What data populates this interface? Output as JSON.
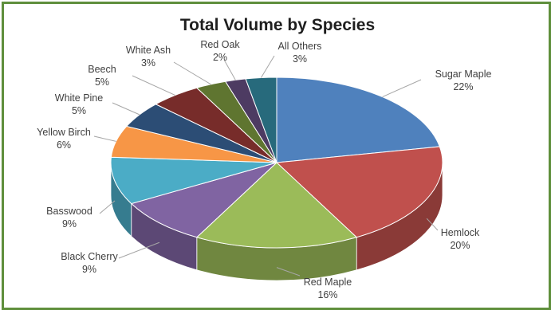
{
  "chart_data": {
    "type": "pie",
    "title": "Total Volume by Species",
    "three_d": true,
    "legend": "none",
    "categories": [
      "Sugar Maple",
      "Hemlock",
      "Red Maple",
      "Black Cherry",
      "Basswood",
      "Yellow Birch",
      "White Pine",
      "Beech",
      "White Ash",
      "Red Oak",
      "All Others"
    ],
    "values": [
      22,
      20,
      16,
      9,
      9,
      6,
      5,
      5,
      3,
      2,
      3
    ],
    "value_labels": [
      "22%",
      "20%",
      "16%",
      "9%",
      "9%",
      "6%",
      "5%",
      "5%",
      "3%",
      "2%",
      "3%"
    ],
    "colors": [
      "#4f81bd",
      "#c0504d",
      "#9bbb59",
      "#8064a2",
      "#4bacc6",
      "#f79646",
      "#2c4d75",
      "#772c2a",
      "#5f7530",
      "#4d3b62",
      "#276a7c"
    ]
  }
}
